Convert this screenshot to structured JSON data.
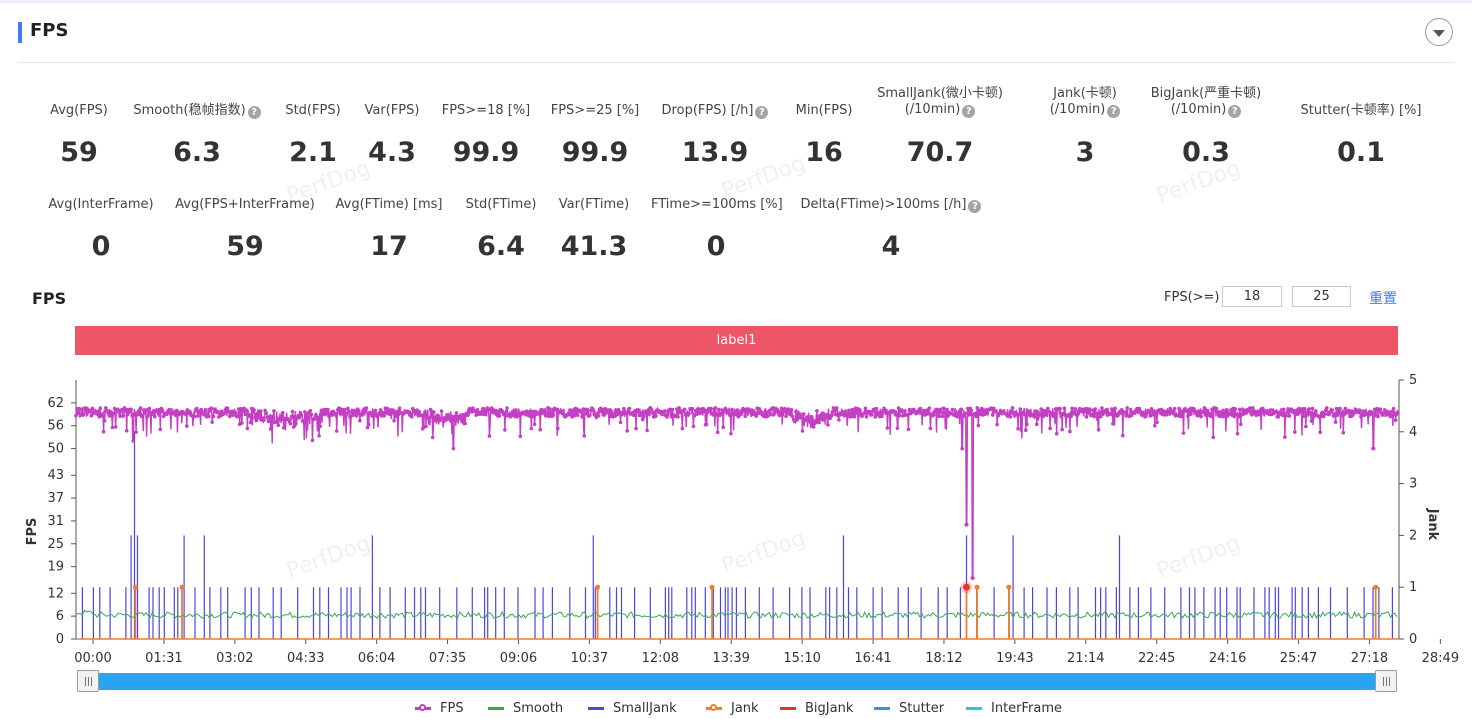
{
  "header": {
    "title": "FPS"
  },
  "metrics_row1": [
    {
      "label": "Avg(FPS)",
      "value": "59",
      "help": false
    },
    {
      "label": "Smooth(稳帧指数)",
      "value": "6.3",
      "help": true
    },
    {
      "label": "Std(FPS)",
      "value": "2.1",
      "help": false
    },
    {
      "label": "Var(FPS)",
      "value": "4.3",
      "help": false
    },
    {
      "label": "FPS>=18 [%]",
      "value": "99.9",
      "help": false
    },
    {
      "label": "FPS>=25 [%]",
      "value": "99.9",
      "help": false
    },
    {
      "label": "Drop(FPS) [/h]",
      "value": "13.9",
      "help": true
    },
    {
      "label": "Min(FPS)",
      "value": "16",
      "help": false
    },
    {
      "label": "SmallJank(微小卡顿)",
      "label2": "(/10min)",
      "value": "70.7",
      "help": true
    },
    {
      "label": "Jank(卡顿)",
      "label2": "(/10min)",
      "value": "3",
      "help": true
    },
    {
      "label": "BigJank(严重卡顿)",
      "label2": "(/10min)",
      "value": "0.3",
      "help": true
    },
    {
      "label": "Stutter(卡顿率) [%]",
      "value": "0.1",
      "help": false
    }
  ],
  "metrics_row2": [
    {
      "label": "Avg(InterFrame)",
      "value": "0",
      "help": false
    },
    {
      "label": "Avg(FPS+InterFrame)",
      "value": "59",
      "help": false
    },
    {
      "label": "Avg(FTime) [ms]",
      "value": "17",
      "help": false
    },
    {
      "label": "Std(FTime)",
      "value": "6.4",
      "help": false
    },
    {
      "label": "Var(FTime)",
      "value": "41.3",
      "help": false
    },
    {
      "label": "FTime>=100ms [%]",
      "value": "0",
      "help": false
    },
    {
      "label": "Delta(FTime)>100ms [/h]",
      "value": "4",
      "help": true
    }
  ],
  "help_glyph": "?",
  "watermark": "PerfDog",
  "chart_header": {
    "title": "FPS",
    "threshold_label": "FPS(>=)",
    "threshold1": "18",
    "threshold2": "25",
    "reset_label": "重置"
  },
  "label_band": "label1",
  "chart_data": {
    "type": "line",
    "ylabel": "FPS",
    "y2label": "Jank",
    "y_ticks": [
      0,
      6,
      12,
      19,
      25,
      31,
      37,
      43,
      50,
      56,
      62
    ],
    "y2_ticks": [
      0,
      1,
      2,
      3,
      4,
      5
    ],
    "ylim": [
      0,
      68
    ],
    "y2lim": [
      0,
      5
    ],
    "x_ticks": [
      "00:00",
      "01:31",
      "03:02",
      "04:33",
      "06:04",
      "07:35",
      "09:06",
      "10:37",
      "12:08",
      "13:39",
      "15:10",
      "16:41",
      "18:12",
      "19:43",
      "21:14",
      "22:45",
      "24:16",
      "25:47",
      "27:18",
      "28:49"
    ],
    "duration_min": 31.2,
    "series": [
      {
        "name": "FPS",
        "color": "#c43fc4",
        "typical_value": 59,
        "dips": [
          {
            "t_min": 1.35,
            "value": 52
          },
          {
            "t_min": 8.9,
            "value": 50
          },
          {
            "t_min": 20.9,
            "value": 50
          },
          {
            "t_min": 21.0,
            "value": 30
          },
          {
            "t_min": 21.15,
            "value": 16
          },
          {
            "t_min": 30.6,
            "value": 50
          }
        ]
      },
      {
        "name": "Smooth",
        "color": "#3aa757",
        "typical_value": 6.3
      },
      {
        "name": "SmallJank",
        "color": "#4b46e3"
      },
      {
        "name": "Jank",
        "color": "#f07f2a",
        "events_min": [
          1.4,
          2.5,
          12.3,
          15.0,
          21.0,
          21.25,
          22.0,
          30.65
        ]
      },
      {
        "name": "BigJank",
        "color": "#e8332d",
        "events_min": [
          21.0
        ]
      },
      {
        "name": "Stutter",
        "color": "#3d8cf0"
      },
      {
        "name": "InterFrame",
        "color": "#2fc4d9",
        "typical_value": 0
      }
    ],
    "legend_position": "bottom-center",
    "grid": false
  }
}
